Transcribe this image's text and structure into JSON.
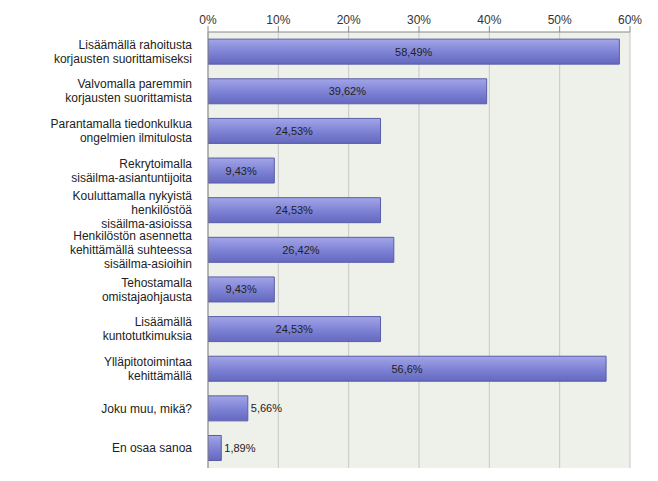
{
  "chart_data": {
    "type": "bar",
    "orientation": "horizontal",
    "categories": [
      "Lisäämällä rahoitusta korjausten suorittamiseksi",
      "Valvomalla paremmin korjausten suorittamista",
      "Parantamalla tiedonkulkua ongelmien ilmitulosta",
      "Rekrytoimalla sisäilma-asiantuntijoita",
      "Kouluttamalla nykyistä henkilöstöä sisäilma-asioissa",
      "Henkilöstön asennetta kehittämällä suhteessa sisäilma-asioihin",
      "Tehostamalla omistajaohjausta",
      "Lisäämällä kuntotutkimuksia",
      "Ylläpitotoimintaa kehittämällä",
      "Joku muu, mikä?",
      "En osaa sanoa"
    ],
    "values": [
      58.49,
      39.62,
      24.53,
      9.43,
      24.53,
      26.42,
      9.43,
      24.53,
      56.6,
      5.66,
      1.89
    ],
    "value_labels": [
      "58,49%",
      "39,62%",
      "24,53%",
      "9,43%",
      "24,53%",
      "26,42%",
      "9,43%",
      "24,53%",
      "56,6%",
      "5,66%",
      "1,89%"
    ],
    "color": "#8084d6",
    "xlim": [
      0,
      60
    ],
    "xticks": [
      {
        "value": 0,
        "label": "0%"
      },
      {
        "value": 10,
        "label": "10%"
      },
      {
        "value": 20,
        "label": "20%"
      },
      {
        "value": 30,
        "label": "30%"
      },
      {
        "value": 40,
        "label": "40%"
      },
      {
        "value": 50,
        "label": "50%"
      },
      {
        "value": 60,
        "label": "60%"
      }
    ],
    "grid": true,
    "data_labels": true
  }
}
